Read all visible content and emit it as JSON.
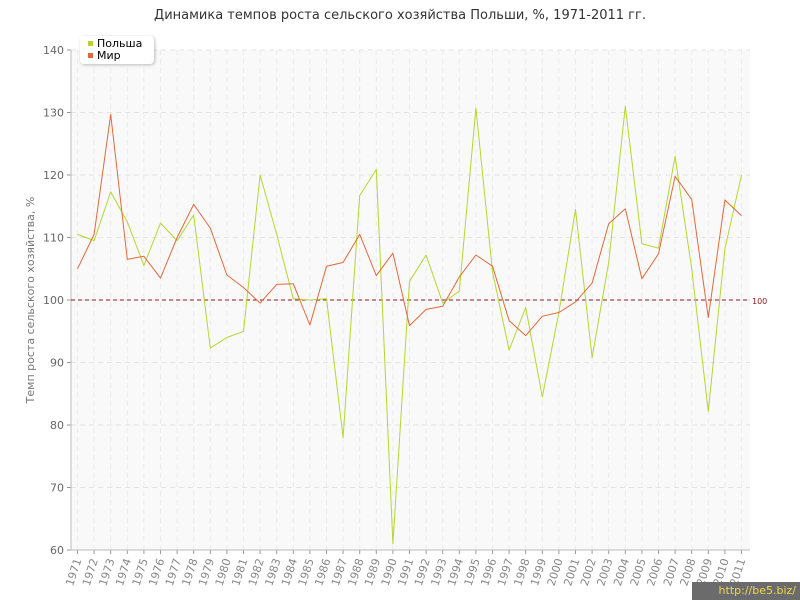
{
  "chart_data": {
    "type": "line",
    "title": "Динамика темпов роста сельского хозяйства Польши, %, 1971-2011 гг.",
    "xlabel": "",
    "ylabel": "Темп роста сельского хозяйства, %",
    "x": [
      "1971",
      "1972",
      "1973",
      "1974",
      "1975",
      "1976",
      "1977",
      "1978",
      "1979",
      "1980",
      "1981",
      "1982",
      "1983",
      "1984",
      "1985",
      "1986",
      "1987",
      "1988",
      "1989",
      "1990",
      "1991",
      "1992",
      "1993",
      "1994",
      "1995",
      "1996",
      "1997",
      "1998",
      "1999",
      "2000",
      "2001",
      "2002",
      "2003",
      "2004",
      "2005",
      "2006",
      "2007",
      "2008",
      "2009",
      "2010",
      "2011"
    ],
    "ylim": [
      60,
      140
    ],
    "yticks": [
      "60",
      "70",
      "80",
      "90",
      "100",
      "110",
      "120",
      "130",
      "140"
    ],
    "grid": true,
    "legend_position": "top-left",
    "series": [
      {
        "name": "Польша",
        "color": "#b5d630",
        "values": [
          110.5,
          109.5,
          117.3,
          112.5,
          105.5,
          112.3,
          109.5,
          113.6,
          92.3,
          94.0,
          95.0,
          120.0,
          110.5,
          100.2,
          100.0,
          100.2,
          78.0,
          116.7,
          120.9,
          61.0,
          103.0,
          107.2,
          99.5,
          101.4,
          130.7,
          104.5,
          92.0,
          98.8,
          84.5,
          98.0,
          114.5,
          90.8,
          106.0,
          131.0,
          109.0,
          108.3,
          123.0,
          105.0,
          82.2,
          108.2,
          120.0
        ]
      },
      {
        "name": "Мир",
        "color": "#e0693c",
        "values": [
          105.0,
          110.5,
          129.7,
          106.5,
          107.0,
          103.5,
          110.0,
          115.3,
          111.5,
          104.0,
          102.0,
          99.5,
          102.5,
          102.6,
          96.0,
          105.4,
          106.0,
          110.5,
          103.9,
          107.5,
          95.9,
          98.5,
          99.0,
          103.7,
          107.2,
          105.4,
          96.7,
          94.3,
          97.4,
          98.0,
          99.7,
          102.7,
          112.2,
          114.6,
          103.4,
          107.4,
          119.8,
          116.1,
          97.2,
          116.0,
          113.5
        ]
      }
    ],
    "reference_line": {
      "value": 100,
      "label": "100",
      "color": "#8b1a1a"
    }
  },
  "watermark": "http://be5.biz/"
}
